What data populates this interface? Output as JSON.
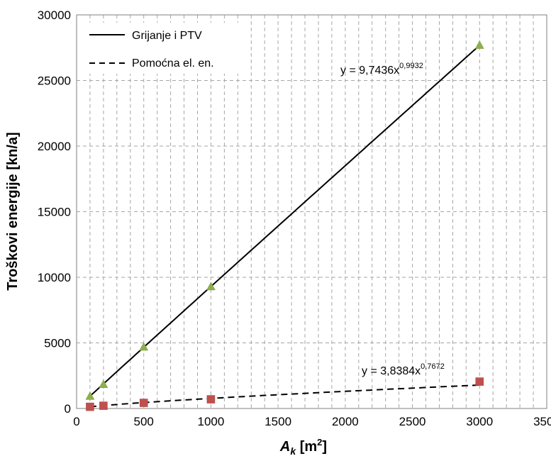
{
  "chart_data": {
    "type": "scatter",
    "title": "",
    "xlabel": "A",
    "xlabel_sub": "k",
    "xlabel_unit_open": " [m",
    "xlabel_unit_sup": "2",
    "xlabel_unit_close": "]",
    "ylabel": "Troškovi energije [kn/a]",
    "xlim": [
      0,
      3500
    ],
    "ylim": [
      0,
      30000
    ],
    "x_ticks": [
      0,
      500,
      1000,
      1500,
      2000,
      2500,
      3000,
      3500
    ],
    "y_ticks": [
      0,
      5000,
      10000,
      15000,
      20000,
      25000,
      30000
    ],
    "grid": true,
    "legend_position": "top-left",
    "series": [
      {
        "name": "Grijanje i PTV",
        "marker": "triangle",
        "marker_color": "#8DB04A",
        "line_style": "solid",
        "x": [
          100,
          200,
          500,
          1000,
          3000
        ],
        "y": [
          950,
          1850,
          4700,
          9300,
          27700
        ],
        "trend": {
          "a": 9.7436,
          "b": 0.9932
        },
        "equation_prefix": "y = 9,7436x",
        "equation_exp": "0,9932"
      },
      {
        "name": "Pomoćna el. en.",
        "marker": "square",
        "marker_color": "#C0504D",
        "line_style": "dashed",
        "x": [
          100,
          200,
          500,
          1000,
          3000
        ],
        "y": [
          130,
          210,
          430,
          700,
          2050
        ],
        "trend": {
          "a": 3.8384,
          "b": 0.7672
        },
        "equation_prefix": "y = 3,8384x",
        "equation_exp": "0,7672"
      }
    ]
  }
}
